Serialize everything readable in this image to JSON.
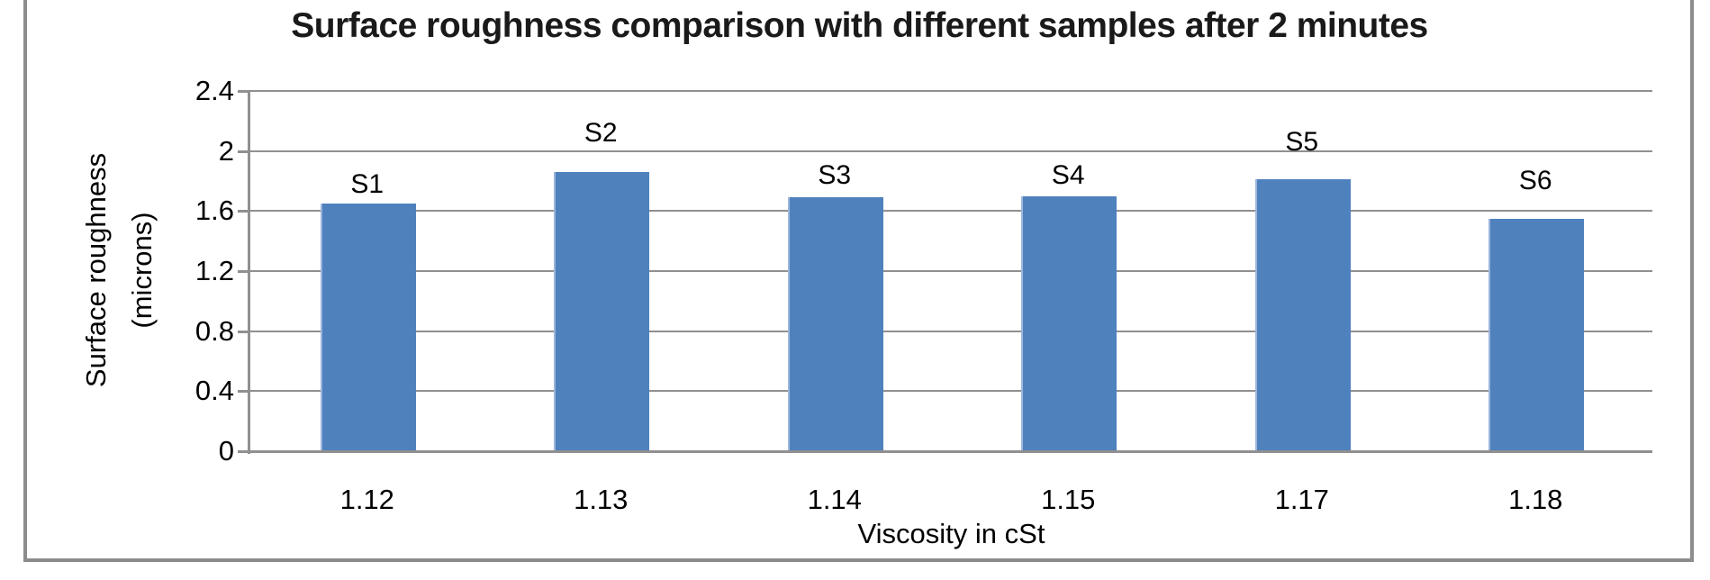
{
  "chart_data": {
    "type": "bar",
    "title": "Surface roughness comparison with different samples after 2 minutes",
    "xlabel": "Viscosity in cSt",
    "ylabel_lines": [
      "Surface roughness",
      "(microns)"
    ],
    "categories": [
      "1.12",
      "1.13",
      "1.14",
      "1.15",
      "1.17",
      "1.18"
    ],
    "series": [
      {
        "name": "Surface roughness (microns)",
        "values": [
          1.65,
          1.86,
          1.69,
          1.7,
          1.81,
          1.55
        ]
      }
    ],
    "point_labels": [
      "S1",
      "S2",
      "S3",
      "S4",
      "S5",
      "S6"
    ],
    "ylim": [
      0,
      2.4
    ],
    "ytick_step": 0.4,
    "yticks": [
      {
        "value": 2.4,
        "label": "2.4"
      },
      {
        "value": 2.0,
        "label": "2"
      },
      {
        "value": 1.6,
        "label": "1.6"
      },
      {
        "value": 1.2,
        "label": "1.2"
      },
      {
        "value": 0.8,
        "label": "0.8"
      },
      {
        "value": 0.4,
        "label": "0.4"
      },
      {
        "value": 0.0,
        "label": "0"
      }
    ],
    "grid": true,
    "legend_position": "none",
    "colors": {
      "bar_fill": "#4f81bd",
      "bar_edge_highlight": "#9db6dc",
      "gridline": "#909090",
      "axis": "#909090",
      "chart_border": "#8c8c8c",
      "text": "#000000",
      "background": "#ffffff"
    }
  }
}
